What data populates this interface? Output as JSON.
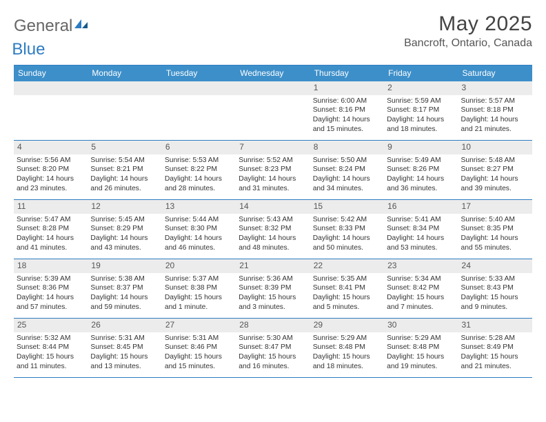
{
  "logo": {
    "text1": "General",
    "text2": "Blue"
  },
  "title": "May 2025",
  "location": "Bancroft, Ontario, Canada",
  "colors": {
    "header_bar": "#3d8fc9",
    "rule": "#2d7cc1",
    "daynum_bg": "#ececec",
    "text": "#333333"
  },
  "daysOfWeek": [
    "Sunday",
    "Monday",
    "Tuesday",
    "Wednesday",
    "Thursday",
    "Friday",
    "Saturday"
  ],
  "weeks": [
    [
      null,
      null,
      null,
      null,
      {
        "n": "1",
        "sr": "Sunrise: 6:00 AM",
        "ss": "Sunset: 8:16 PM",
        "d1": "Daylight: 14 hours",
        "d2": "and 15 minutes."
      },
      {
        "n": "2",
        "sr": "Sunrise: 5:59 AM",
        "ss": "Sunset: 8:17 PM",
        "d1": "Daylight: 14 hours",
        "d2": "and 18 minutes."
      },
      {
        "n": "3",
        "sr": "Sunrise: 5:57 AM",
        "ss": "Sunset: 8:18 PM",
        "d1": "Daylight: 14 hours",
        "d2": "and 21 minutes."
      }
    ],
    [
      {
        "n": "4",
        "sr": "Sunrise: 5:56 AM",
        "ss": "Sunset: 8:20 PM",
        "d1": "Daylight: 14 hours",
        "d2": "and 23 minutes."
      },
      {
        "n": "5",
        "sr": "Sunrise: 5:54 AM",
        "ss": "Sunset: 8:21 PM",
        "d1": "Daylight: 14 hours",
        "d2": "and 26 minutes."
      },
      {
        "n": "6",
        "sr": "Sunrise: 5:53 AM",
        "ss": "Sunset: 8:22 PM",
        "d1": "Daylight: 14 hours",
        "d2": "and 28 minutes."
      },
      {
        "n": "7",
        "sr": "Sunrise: 5:52 AM",
        "ss": "Sunset: 8:23 PM",
        "d1": "Daylight: 14 hours",
        "d2": "and 31 minutes."
      },
      {
        "n": "8",
        "sr": "Sunrise: 5:50 AM",
        "ss": "Sunset: 8:24 PM",
        "d1": "Daylight: 14 hours",
        "d2": "and 34 minutes."
      },
      {
        "n": "9",
        "sr": "Sunrise: 5:49 AM",
        "ss": "Sunset: 8:26 PM",
        "d1": "Daylight: 14 hours",
        "d2": "and 36 minutes."
      },
      {
        "n": "10",
        "sr": "Sunrise: 5:48 AM",
        "ss": "Sunset: 8:27 PM",
        "d1": "Daylight: 14 hours",
        "d2": "and 39 minutes."
      }
    ],
    [
      {
        "n": "11",
        "sr": "Sunrise: 5:47 AM",
        "ss": "Sunset: 8:28 PM",
        "d1": "Daylight: 14 hours",
        "d2": "and 41 minutes."
      },
      {
        "n": "12",
        "sr": "Sunrise: 5:45 AM",
        "ss": "Sunset: 8:29 PM",
        "d1": "Daylight: 14 hours",
        "d2": "and 43 minutes."
      },
      {
        "n": "13",
        "sr": "Sunrise: 5:44 AM",
        "ss": "Sunset: 8:30 PM",
        "d1": "Daylight: 14 hours",
        "d2": "and 46 minutes."
      },
      {
        "n": "14",
        "sr": "Sunrise: 5:43 AM",
        "ss": "Sunset: 8:32 PM",
        "d1": "Daylight: 14 hours",
        "d2": "and 48 minutes."
      },
      {
        "n": "15",
        "sr": "Sunrise: 5:42 AM",
        "ss": "Sunset: 8:33 PM",
        "d1": "Daylight: 14 hours",
        "d2": "and 50 minutes."
      },
      {
        "n": "16",
        "sr": "Sunrise: 5:41 AM",
        "ss": "Sunset: 8:34 PM",
        "d1": "Daylight: 14 hours",
        "d2": "and 53 minutes."
      },
      {
        "n": "17",
        "sr": "Sunrise: 5:40 AM",
        "ss": "Sunset: 8:35 PM",
        "d1": "Daylight: 14 hours",
        "d2": "and 55 minutes."
      }
    ],
    [
      {
        "n": "18",
        "sr": "Sunrise: 5:39 AM",
        "ss": "Sunset: 8:36 PM",
        "d1": "Daylight: 14 hours",
        "d2": "and 57 minutes."
      },
      {
        "n": "19",
        "sr": "Sunrise: 5:38 AM",
        "ss": "Sunset: 8:37 PM",
        "d1": "Daylight: 14 hours",
        "d2": "and 59 minutes."
      },
      {
        "n": "20",
        "sr": "Sunrise: 5:37 AM",
        "ss": "Sunset: 8:38 PM",
        "d1": "Daylight: 15 hours",
        "d2": "and 1 minute."
      },
      {
        "n": "21",
        "sr": "Sunrise: 5:36 AM",
        "ss": "Sunset: 8:39 PM",
        "d1": "Daylight: 15 hours",
        "d2": "and 3 minutes."
      },
      {
        "n": "22",
        "sr": "Sunrise: 5:35 AM",
        "ss": "Sunset: 8:41 PM",
        "d1": "Daylight: 15 hours",
        "d2": "and 5 minutes."
      },
      {
        "n": "23",
        "sr": "Sunrise: 5:34 AM",
        "ss": "Sunset: 8:42 PM",
        "d1": "Daylight: 15 hours",
        "d2": "and 7 minutes."
      },
      {
        "n": "24",
        "sr": "Sunrise: 5:33 AM",
        "ss": "Sunset: 8:43 PM",
        "d1": "Daylight: 15 hours",
        "d2": "and 9 minutes."
      }
    ],
    [
      {
        "n": "25",
        "sr": "Sunrise: 5:32 AM",
        "ss": "Sunset: 8:44 PM",
        "d1": "Daylight: 15 hours",
        "d2": "and 11 minutes."
      },
      {
        "n": "26",
        "sr": "Sunrise: 5:31 AM",
        "ss": "Sunset: 8:45 PM",
        "d1": "Daylight: 15 hours",
        "d2": "and 13 minutes."
      },
      {
        "n": "27",
        "sr": "Sunrise: 5:31 AM",
        "ss": "Sunset: 8:46 PM",
        "d1": "Daylight: 15 hours",
        "d2": "and 15 minutes."
      },
      {
        "n": "28",
        "sr": "Sunrise: 5:30 AM",
        "ss": "Sunset: 8:47 PM",
        "d1": "Daylight: 15 hours",
        "d2": "and 16 minutes."
      },
      {
        "n": "29",
        "sr": "Sunrise: 5:29 AM",
        "ss": "Sunset: 8:48 PM",
        "d1": "Daylight: 15 hours",
        "d2": "and 18 minutes."
      },
      {
        "n": "30",
        "sr": "Sunrise: 5:29 AM",
        "ss": "Sunset: 8:48 PM",
        "d1": "Daylight: 15 hours",
        "d2": "and 19 minutes."
      },
      {
        "n": "31",
        "sr": "Sunrise: 5:28 AM",
        "ss": "Sunset: 8:49 PM",
        "d1": "Daylight: 15 hours",
        "d2": "and 21 minutes."
      }
    ]
  ]
}
